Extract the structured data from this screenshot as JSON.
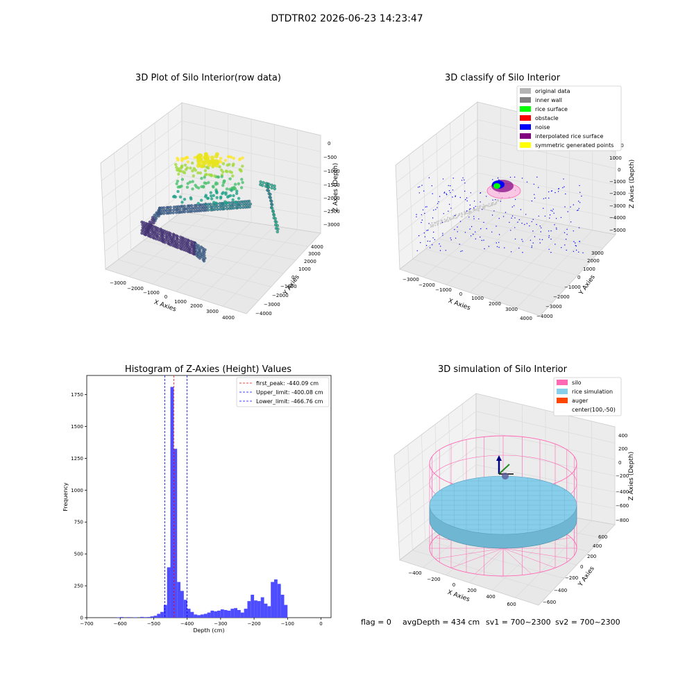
{
  "suptitle": "DTDTR02 2026-06-23 14:23:47",
  "colors": {
    "pane": "#f2f2f2",
    "grid": "#d8d8d8",
    "hist_bar": "#4d4dff",
    "silo": "#ff69b4",
    "rice": "#87ceeb",
    "auger": "#ff4500"
  },
  "chart_data": [
    {
      "id": "raw",
      "type": "scatter3d",
      "title": "3D Plot of Silo Interior(row data)",
      "xlabel": "X Axies",
      "ylabel": "Y Axies",
      "zlabel": "Z Axies (Depth)",
      "xticks": [
        "−3000",
        "−2000",
        "−1000",
        "0",
        "1000",
        "2000",
        "3000",
        "4000"
      ],
      "yticks": [
        "−4000",
        "−3000",
        "−2000",
        "−1000",
        "0",
        "1000",
        "2000",
        "3000",
        "4000"
      ],
      "zticks": [
        "0",
        "−500",
        "−1000",
        "−1500",
        "−2000",
        "−2500",
        "−3000"
      ],
      "colormap": "viridis"
    },
    {
      "id": "classify",
      "type": "scatter3d",
      "title": "3D classify of Silo Interior",
      "xlabel": "X Axies",
      "ylabel": "Y Axies",
      "zlabel": "Z Axies (Depth)",
      "xticks": [
        "−3000",
        "−2000",
        "−1000",
        "0",
        "1000",
        "2000",
        "3000",
        "4000"
      ],
      "yticks": [
        "−4000",
        "−3000",
        "−2000",
        "−1000",
        "0",
        "1000",
        "2000",
        "3000"
      ],
      "zticks": [
        "2000",
        "1000",
        "0",
        "−1000",
        "−2000",
        "−3000",
        "−4000",
        "−5000"
      ],
      "legend": [
        {
          "name": "original data",
          "color": "#b3b3b3"
        },
        {
          "name": "inner wall",
          "color": "#808080"
        },
        {
          "name": "rice surface",
          "color": "#00ff00"
        },
        {
          "name": "obstacle",
          "color": "#ff0000"
        },
        {
          "name": "noise",
          "color": "#0000ff"
        },
        {
          "name": "interpolated rice surface",
          "color": "#800080"
        },
        {
          "name": "symmetric generated points",
          "color": "#ffff00"
        }
      ],
      "legend_position": "top-right"
    },
    {
      "id": "hist",
      "type": "bar",
      "title": "Histogram of Z-Axies (Height) Values",
      "xlabel": "Depth (cm)",
      "ylabel": "Frequency",
      "xlim": [
        -700,
        30
      ],
      "ylim": [
        0,
        1900
      ],
      "xticks": [
        -700,
        -600,
        -500,
        -400,
        -300,
        -200,
        -100,
        0
      ],
      "yticks": [
        0,
        250,
        500,
        750,
        1000,
        1250,
        1500,
        1750
      ],
      "bin_width": 10,
      "bins": [
        {
          "x": -610,
          "y": 3
        },
        {
          "x": -600,
          "y": 5
        },
        {
          "x": -580,
          "y": 4
        },
        {
          "x": -560,
          "y": 3
        },
        {
          "x": -540,
          "y": 6
        },
        {
          "x": -530,
          "y": 4
        },
        {
          "x": -520,
          "y": 5
        },
        {
          "x": -510,
          "y": 10
        },
        {
          "x": -500,
          "y": 15
        },
        {
          "x": -490,
          "y": 30
        },
        {
          "x": -480,
          "y": 45
        },
        {
          "x": -470,
          "y": 100
        },
        {
          "x": -460,
          "y": 395
        },
        {
          "x": -450,
          "y": 1810
        },
        {
          "x": -440,
          "y": 1325
        },
        {
          "x": -430,
          "y": 280
        },
        {
          "x": -420,
          "y": 210
        },
        {
          "x": -410,
          "y": 140
        },
        {
          "x": -400,
          "y": 70
        },
        {
          "x": -390,
          "y": 45
        },
        {
          "x": -380,
          "y": 25
        },
        {
          "x": -370,
          "y": 20
        },
        {
          "x": -360,
          "y": 25
        },
        {
          "x": -350,
          "y": 30
        },
        {
          "x": -340,
          "y": 40
        },
        {
          "x": -330,
          "y": 55
        },
        {
          "x": -320,
          "y": 50
        },
        {
          "x": -310,
          "y": 55
        },
        {
          "x": -300,
          "y": 65
        },
        {
          "x": -290,
          "y": 60
        },
        {
          "x": -280,
          "y": 55
        },
        {
          "x": -270,
          "y": 70
        },
        {
          "x": -260,
          "y": 75
        },
        {
          "x": -250,
          "y": 60
        },
        {
          "x": -240,
          "y": 40
        },
        {
          "x": -230,
          "y": 70
        },
        {
          "x": -220,
          "y": 130
        },
        {
          "x": -210,
          "y": 180
        },
        {
          "x": -200,
          "y": 135
        },
        {
          "x": -190,
          "y": 130
        },
        {
          "x": -180,
          "y": 160
        },
        {
          "x": -170,
          "y": 110
        },
        {
          "x": -160,
          "y": 90
        },
        {
          "x": -150,
          "y": 280
        },
        {
          "x": -140,
          "y": 300
        },
        {
          "x": -130,
          "y": 265
        },
        {
          "x": -120,
          "y": 180
        },
        {
          "x": -110,
          "y": 100
        }
      ],
      "vlines": [
        {
          "x": -440.09,
          "color": "#ff0000",
          "label": "first_peak: -440.09 cm"
        },
        {
          "x": -400.08,
          "color": "#0000ff",
          "label": "Upper_limit: -400.08 cm"
        },
        {
          "x": -466.76,
          "color": "#0000ff",
          "label": "Lower_limit: -466.76 cm"
        }
      ],
      "legend_position": "top-right"
    },
    {
      "id": "sim",
      "type": "surface3d",
      "title": "3D simulation of Silo Interior",
      "xlabel": "X Axies",
      "ylabel": "Y Axies",
      "zlabel": "Z Axies (Depth)",
      "xticks": [
        "−400",
        "−200",
        "0",
        "200",
        "400",
        "600"
      ],
      "yticks": [
        "−600",
        "−400",
        "−200",
        "0",
        "200",
        "400",
        "600"
      ],
      "zticks": [
        "400",
        "200",
        "0",
        "−200",
        "−400",
        "−600",
        "−800"
      ],
      "legend": [
        {
          "name": "silo",
          "color": "#ff69b4"
        },
        {
          "name": "rice simulation",
          "color": "#87ceeb"
        },
        {
          "name": "auger",
          "color": "#ff4500"
        },
        {
          "name": "center(100,-50)",
          "color": ""
        }
      ],
      "legend_position": "top-right"
    }
  ],
  "status": {
    "flag": "flag = 0",
    "avg_depth": "avgDepth = 434 cm",
    "sv1": "sv1 = 700~2300",
    "sv2": "sv2 = 700~2300"
  }
}
